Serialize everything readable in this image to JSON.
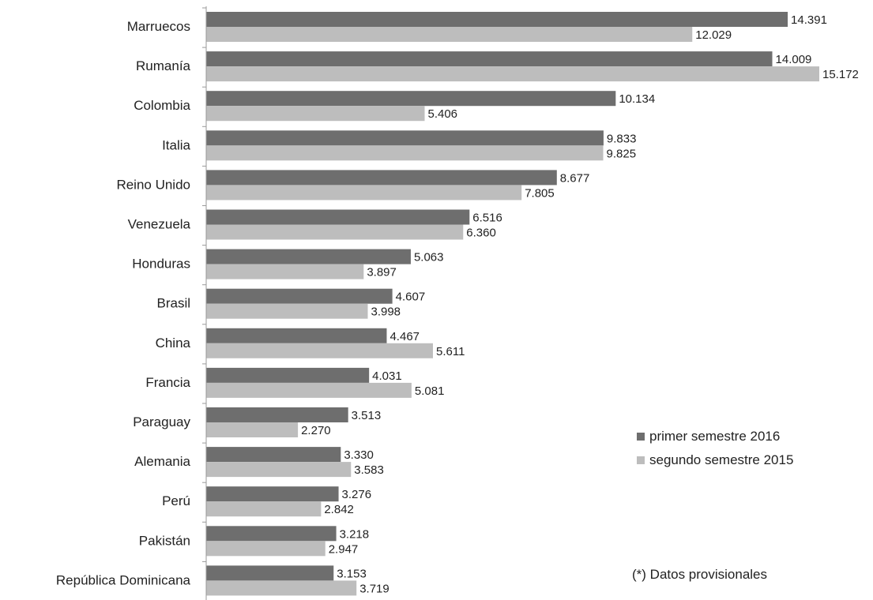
{
  "chart_data": {
    "type": "bar",
    "orientation": "horizontal",
    "categories": [
      "Marruecos",
      "Rumanía",
      "Colombia",
      "Italia",
      "Reino Unido",
      "Venezuela",
      "Honduras",
      "Brasil",
      "China",
      "Francia",
      "Paraguay",
      "Alemania",
      "Perú",
      "Pakistán",
      "República Dominicana"
    ],
    "series": [
      {
        "name": "primer semestre 2016",
        "color": "#6e6e6e",
        "values": [
          14391,
          14009,
          10134,
          9833,
          8677,
          6516,
          5063,
          4607,
          4467,
          4031,
          3513,
          3330,
          3276,
          3218,
          3153
        ],
        "labels": [
          "14.391",
          "14.009",
          "10.134",
          "9.833",
          "8.677",
          "6.516",
          "5.063",
          "4.607",
          "4.467",
          "4.031",
          "3.513",
          "3.330",
          "3.276",
          "3.218",
          "3.153"
        ]
      },
      {
        "name": "segundo semestre 2015",
        "color": "#bdbdbd",
        "values": [
          12029,
          15172,
          5406,
          9825,
          7805,
          6360,
          3897,
          3998,
          5611,
          5081,
          2270,
          3583,
          2842,
          2947,
          3719
        ],
        "labels": [
          "12.029",
          "15.172",
          "5.406",
          "9.825",
          "7.805",
          "6.360",
          "3.897",
          "3.998",
          "5.611",
          "5.081",
          "2.270",
          "3.583",
          "2.842",
          "2.947",
          "3.719"
        ]
      }
    ],
    "xlim": [
      0,
      15172
    ],
    "grid": false,
    "legend_position": "bottom-right",
    "note": "(*) Datos provisionales"
  }
}
